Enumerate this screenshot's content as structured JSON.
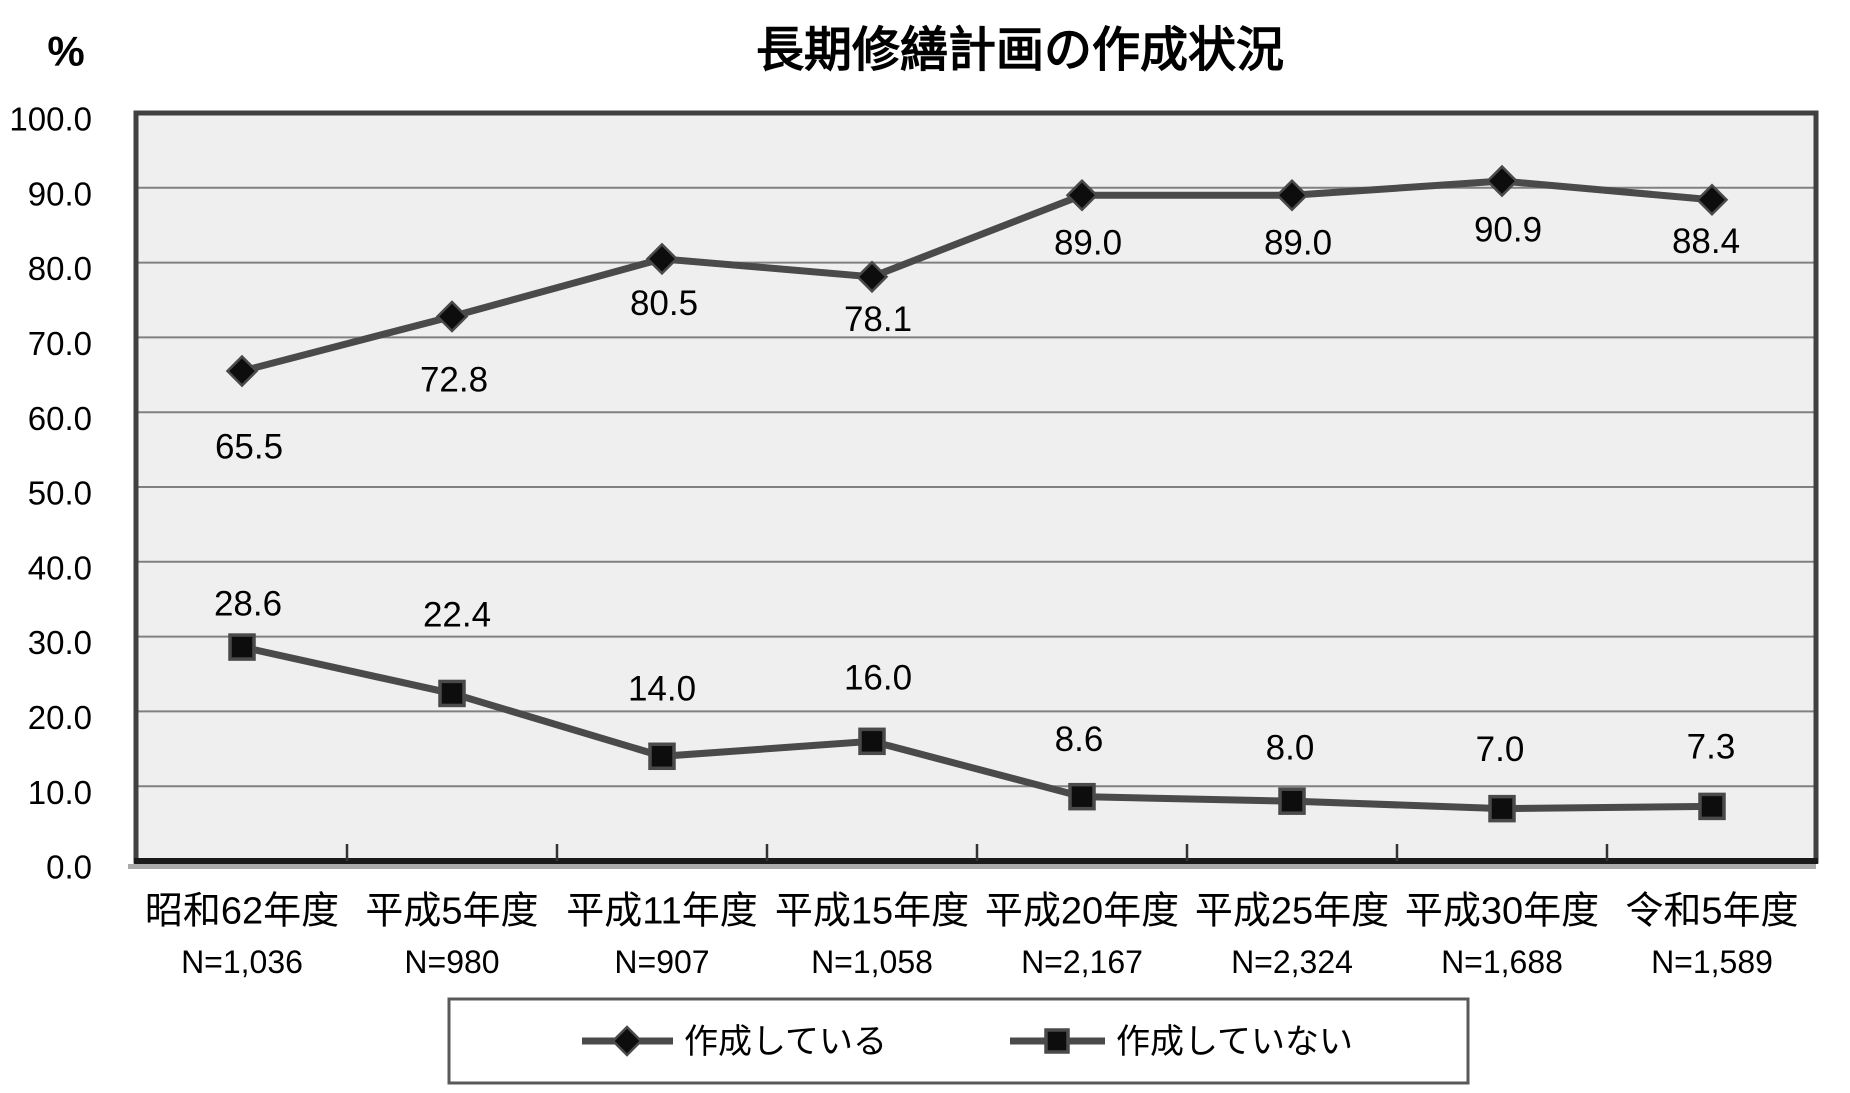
{
  "chart_data": {
    "type": "line",
    "title": "長期修繕計画の作成状況",
    "y_axis": {
      "unit_label": "%",
      "min": 0,
      "max": 100,
      "ticks": [
        "0.0",
        "10.0",
        "20.0",
        "30.0",
        "40.0",
        "50.0",
        "60.0",
        "70.0",
        "80.0",
        "90.0",
        "100.0"
      ]
    },
    "categories": [
      {
        "year": "昭和62年度",
        "n": "N=1,036"
      },
      {
        "year": "平成5年度",
        "n": "N=980"
      },
      {
        "year": "平成11年度",
        "n": "N=907"
      },
      {
        "year": "平成15年度",
        "n": "N=1,058"
      },
      {
        "year": "平成20年度",
        "n": "N=2,167"
      },
      {
        "year": "平成25年度",
        "n": "N=2,324"
      },
      {
        "year": "平成30年度",
        "n": "N=1,688"
      },
      {
        "year": "令和5年度",
        "n": "N=1,589"
      }
    ],
    "series": [
      {
        "name": "作成している",
        "marker": "diamond",
        "values": [
          "65.5",
          "72.8",
          "80.5",
          "78.1",
          "89.0",
          "89.0",
          "90.9",
          "88.4"
        ]
      },
      {
        "name": "作成していない",
        "marker": "square",
        "values": [
          "28.6",
          "22.4",
          "14.0",
          "16.0",
          "8.6",
          "8.0",
          "7.0",
          "7.3"
        ]
      }
    ],
    "legend_position": "bottom",
    "grid": "horizontal",
    "colors": {
      "line": "#4a4a4a",
      "marker_fill": "#0d0d0d",
      "plot_bg": "#efefef",
      "gridline": "#808080",
      "border": "#404040",
      "axis": "#1a1a1a",
      "shadow": "#ababab"
    }
  }
}
